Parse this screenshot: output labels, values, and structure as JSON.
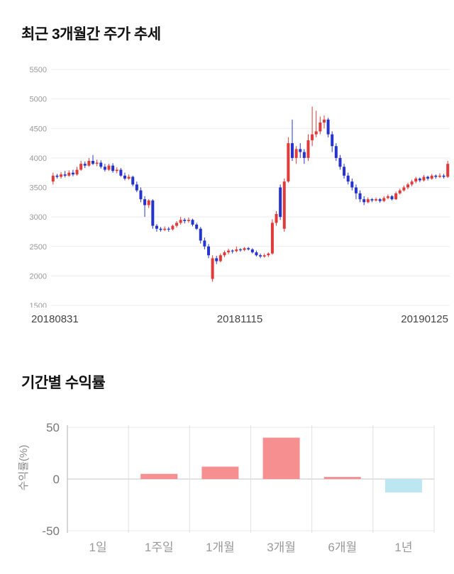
{
  "page": {
    "price_section_title": "최근 3개월간 주가 추세",
    "returns_section_title": "기간별 수익률"
  },
  "chart_data": [
    {
      "type": "candlestick",
      "title": "최근 3개월간 주가 추세",
      "ylim": [
        1500,
        5500
      ],
      "yticks": [
        5500,
        5000,
        4500,
        4000,
        3500,
        3000,
        2500,
        2000,
        1500
      ],
      "xtick_labels": [
        "20180831",
        "20181115",
        "20190125"
      ],
      "grid": true,
      "legend": "none",
      "up_color": "#e03a3a",
      "down_color": "#2633cc",
      "candles_format": [
        "open",
        "high",
        "low",
        "close"
      ],
      "candles": [
        [
          3600,
          3750,
          3550,
          3700
        ],
        [
          3700,
          3730,
          3650,
          3680
        ],
        [
          3680,
          3760,
          3650,
          3720
        ],
        [
          3720,
          3780,
          3670,
          3700
        ],
        [
          3700,
          3790,
          3680,
          3750
        ],
        [
          3750,
          3800,
          3690,
          3720
        ],
        [
          3720,
          3850,
          3700,
          3800
        ],
        [
          3800,
          3950,
          3780,
          3900
        ],
        [
          3900,
          3940,
          3830,
          3870
        ],
        [
          3870,
          4000,
          3850,
          3950
        ],
        [
          3950,
          4050,
          3880,
          3900
        ],
        [
          3900,
          3970,
          3860,
          3920
        ],
        [
          3920,
          3960,
          3820,
          3850
        ],
        [
          3850,
          3900,
          3770,
          3800
        ],
        [
          3800,
          3900,
          3780,
          3870
        ],
        [
          3870,
          3910,
          3750,
          3780
        ],
        [
          3780,
          3840,
          3740,
          3800
        ],
        [
          3800,
          3830,
          3680,
          3700
        ],
        [
          3700,
          3750,
          3620,
          3650
        ],
        [
          3650,
          3720,
          3630,
          3680
        ],
        [
          3680,
          3700,
          3520,
          3550
        ],
        [
          3550,
          3600,
          3420,
          3450
        ],
        [
          3450,
          3500,
          3250,
          3300
        ],
        [
          3300,
          3350,
          3000,
          3200
        ],
        [
          3200,
          3300,
          3150,
          3280
        ],
        [
          3280,
          3300,
          2800,
          2850
        ],
        [
          2850,
          2880,
          2750,
          2800
        ],
        [
          2800,
          2830,
          2750,
          2780
        ],
        [
          2780,
          2840,
          2760,
          2800
        ],
        [
          2800,
          2830,
          2750,
          2790
        ],
        [
          2790,
          2870,
          2770,
          2850
        ],
        [
          2850,
          2930,
          2820,
          2900
        ],
        [
          2900,
          3000,
          2870,
          2950
        ],
        [
          2950,
          2980,
          2890,
          2930
        ],
        [
          2930,
          2990,
          2900,
          2950
        ],
        [
          2950,
          2970,
          2840,
          2870
        ],
        [
          2870,
          2900,
          2780,
          2800
        ],
        [
          2800,
          2830,
          2550,
          2600
        ],
        [
          2600,
          2650,
          2450,
          2500
        ],
        [
          2500,
          2540,
          2300,
          2350
        ],
        [
          1950,
          2350,
          1900,
          2300
        ],
        [
          2300,
          2340,
          2200,
          2250
        ],
        [
          2250,
          2380,
          2230,
          2350
        ],
        [
          2350,
          2430,
          2320,
          2400
        ],
        [
          2400,
          2460,
          2370,
          2430
        ],
        [
          2430,
          2450,
          2380,
          2420
        ],
        [
          2420,
          2500,
          2400,
          2450
        ],
        [
          2450,
          2470,
          2410,
          2440
        ],
        [
          2440,
          2490,
          2420,
          2470
        ],
        [
          2470,
          2490,
          2430,
          2450
        ],
        [
          2450,
          2470,
          2380,
          2400
        ],
        [
          2400,
          2430,
          2330,
          2350
        ],
        [
          2350,
          2380,
          2300,
          2330
        ],
        [
          2330,
          2380,
          2310,
          2350
        ],
        [
          2350,
          2400,
          2320,
          2380
        ],
        [
          2380,
          2960,
          2360,
          2900
        ],
        [
          2900,
          3100,
          2850,
          3050
        ],
        [
          3500,
          3550,
          2950,
          3000
        ],
        [
          2800,
          3650,
          2750,
          3600
        ],
        [
          3600,
          4350,
          3580,
          4250
        ],
        [
          4250,
          4650,
          3950,
          4000
        ],
        [
          4000,
          4200,
          3900,
          4150
        ],
        [
          4150,
          4250,
          4000,
          4100
        ],
        [
          4100,
          4150,
          3900,
          4000
        ],
        [
          4000,
          4400,
          3950,
          4300
        ],
        [
          4300,
          4870,
          4200,
          4400
        ],
        [
          4400,
          4800,
          4350,
          4450
        ],
        [
          4450,
          4700,
          4400,
          4600
        ],
        [
          4600,
          4720,
          4500,
          4650
        ],
        [
          4650,
          4680,
          4350,
          4400
        ],
        [
          4400,
          4450,
          4100,
          4200
        ],
        [
          4200,
          4250,
          3950,
          4000
        ],
        [
          4000,
          4050,
          3800,
          3850
        ],
        [
          3850,
          3900,
          3650,
          3700
        ],
        [
          3700,
          3750,
          3550,
          3600
        ],
        [
          3600,
          3650,
          3450,
          3500
        ],
        [
          3500,
          3550,
          3300,
          3400
        ],
        [
          3400,
          3450,
          3250,
          3300
        ],
        [
          3300,
          3350,
          3200,
          3250
        ],
        [
          3250,
          3330,
          3230,
          3300
        ],
        [
          3300,
          3320,
          3250,
          3280
        ],
        [
          3280,
          3330,
          3260,
          3300
        ],
        [
          3300,
          3320,
          3240,
          3270
        ],
        [
          3270,
          3350,
          3250,
          3320
        ],
        [
          3320,
          3380,
          3300,
          3350
        ],
        [
          3350,
          3370,
          3280,
          3300
        ],
        [
          3300,
          3430,
          3290,
          3400
        ],
        [
          3400,
          3480,
          3380,
          3450
        ],
        [
          3450,
          3530,
          3430,
          3500
        ],
        [
          3500,
          3580,
          3470,
          3550
        ],
        [
          3550,
          3630,
          3520,
          3600
        ],
        [
          3600,
          3680,
          3570,
          3650
        ],
        [
          3650,
          3670,
          3590,
          3620
        ],
        [
          3620,
          3710,
          3600,
          3680
        ],
        [
          3680,
          3700,
          3620,
          3650
        ],
        [
          3650,
          3730,
          3630,
          3700
        ],
        [
          3700,
          3720,
          3650,
          3680
        ],
        [
          3680,
          3740,
          3660,
          3700
        ],
        [
          3700,
          3730,
          3650,
          3680
        ],
        [
          3680,
          3950,
          3660,
          3900
        ]
      ]
    },
    {
      "type": "bar",
      "title": "기간별 수익률",
      "categories": [
        "1일",
        "1주일",
        "1개월",
        "3개월",
        "6개월",
        "1년"
      ],
      "values": [
        0,
        5,
        12,
        40,
        2,
        -13
      ],
      "xlabel": "",
      "ylabel": "수익률(%)",
      "ylim": [
        -50,
        50
      ],
      "yticks": [
        50,
        0,
        -50
      ],
      "grid": true,
      "positive_color": "#f69090",
      "negative_color": "#bce7f2"
    }
  ]
}
